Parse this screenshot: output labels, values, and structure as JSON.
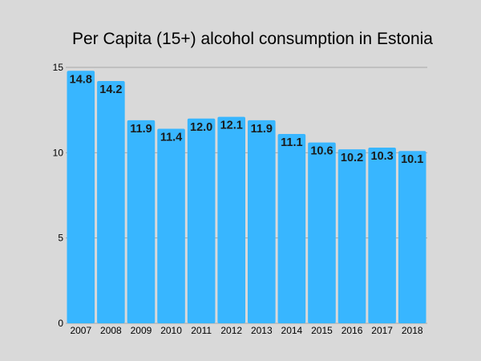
{
  "chart_data": {
    "type": "bar",
    "title": "Per Capita (15+) alcohol consumption in Estonia",
    "xlabel": "",
    "ylabel": "",
    "categories": [
      "2007",
      "2008",
      "2009",
      "2010",
      "2011",
      "2012",
      "2013",
      "2014",
      "2015",
      "2016",
      "2017",
      "2018"
    ],
    "values": [
      14.8,
      14.2,
      11.9,
      11.4,
      12.0,
      12.1,
      11.9,
      11.1,
      10.6,
      10.2,
      10.3,
      10.1
    ],
    "data_labels": [
      "14.8",
      "14.2",
      "11.9",
      "11.4",
      "12.0",
      "12.1",
      "11.9",
      "11.1",
      "10.6",
      "10.2",
      "10.3",
      "10.1"
    ],
    "ylim": [
      0,
      15
    ],
    "yticks": [
      0,
      5,
      10,
      15
    ],
    "ytick_labels": [
      "0",
      "5",
      "10",
      "15"
    ],
    "grid": true,
    "legend": "none",
    "colors": {
      "bar": "#38b6ff",
      "background": "#d9d9d9",
      "grid": "#a6a6a6"
    }
  }
}
